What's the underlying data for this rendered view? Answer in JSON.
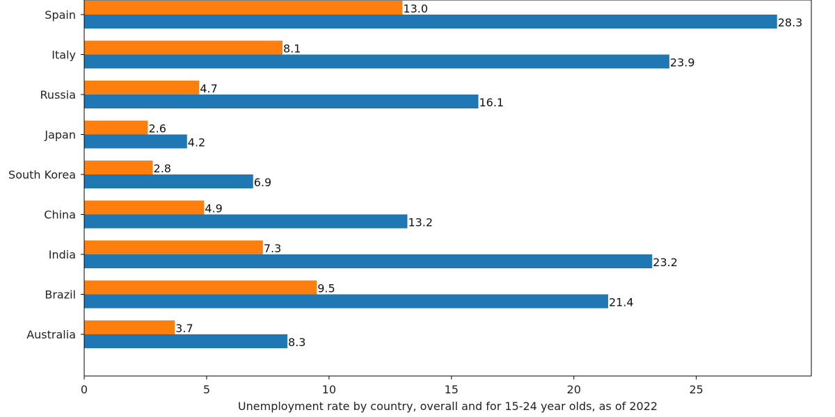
{
  "chart_data": {
    "type": "bar",
    "orientation": "horizontal",
    "categories": [
      "Spain",
      "Italy",
      "Russia",
      "Japan",
      "South Korea",
      "China",
      "India",
      "Brazil",
      "Australia"
    ],
    "series": [
      {
        "values": [
          13.0,
          8.1,
          4.7,
          2.6,
          2.8,
          4.9,
          7.3,
          9.5,
          3.7
        ],
        "color": "#ff7f0e"
      },
      {
        "values": [
          28.3,
          23.9,
          16.1,
          4.2,
          6.9,
          13.2,
          23.2,
          21.4,
          8.3
        ],
        "color": "#1f77b4"
      }
    ],
    "data_labels": {
      "orange": [
        "13.0",
        "8.1",
        "4.7",
        "2.6",
        "2.8",
        "4.9",
        "7.3",
        "9.5",
        "3.7"
      ],
      "blue": [
        "28.3",
        "23.9",
        "16.1",
        "4.2",
        "6.9",
        "13.2",
        "23.2",
        "21.4",
        "8.3"
      ]
    },
    "xlabel": "Unemployment rate by country, overall and for 15-24 year olds, as of 2022",
    "ylabel": "",
    "xlim": [
      0,
      29.7
    ],
    "xticks": [
      0,
      5,
      10,
      15,
      20,
      25
    ],
    "xtick_labels": [
      "0",
      "5",
      "10",
      "15",
      "20",
      "25"
    ],
    "grid": false,
    "legend": "none"
  }
}
